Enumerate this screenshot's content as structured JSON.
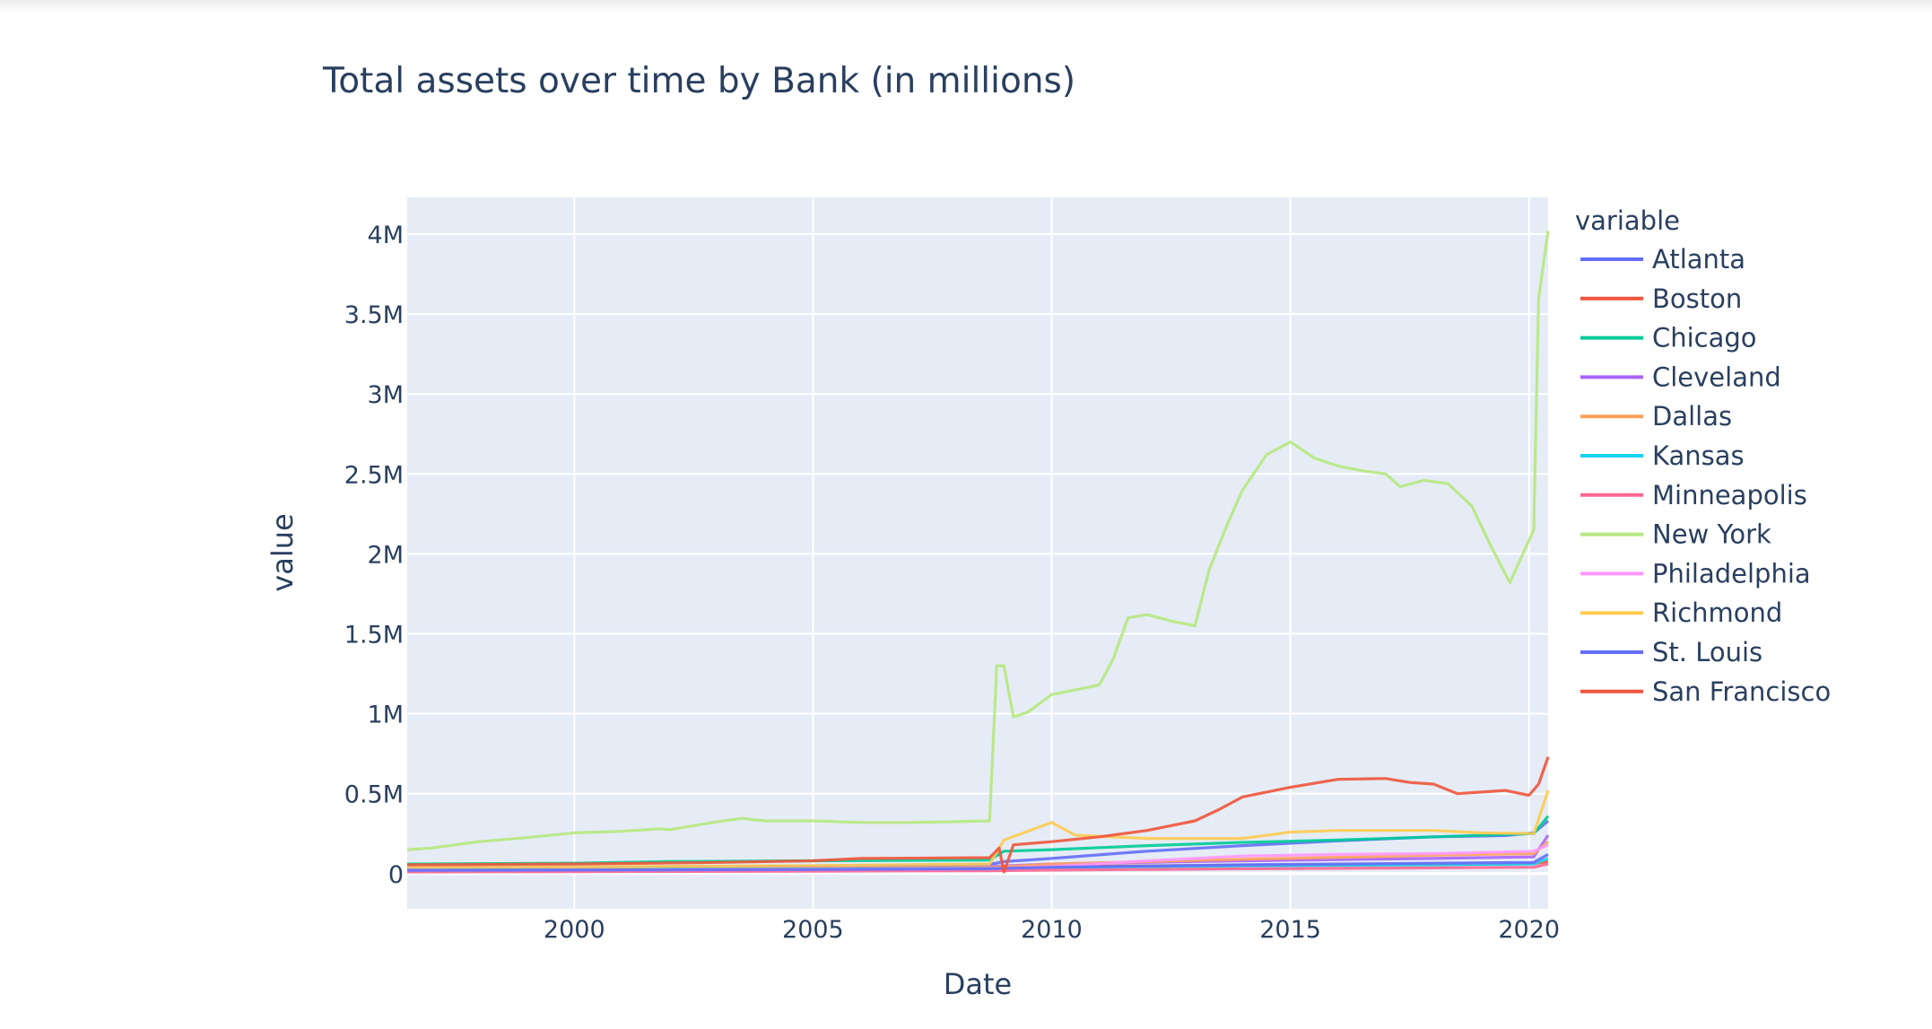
{
  "chart_data": {
    "type": "line",
    "title": "Total assets over time by Bank (in millions)",
    "xlabel": "Date",
    "ylabel": "value",
    "xlim": [
      1996.5,
      2020.4
    ],
    "ylim": [
      -220000,
      4230000
    ],
    "x_ticks": [
      2000,
      2005,
      2010,
      2015,
      2020
    ],
    "x_tick_labels": [
      "2000",
      "2005",
      "2010",
      "2015",
      "2020"
    ],
    "y_ticks": [
      0,
      500000,
      1000000,
      1500000,
      2000000,
      2500000,
      3000000,
      3500000,
      4000000
    ],
    "y_tick_labels": [
      "0",
      "0.5M",
      "1M",
      "1.5M",
      "2M",
      "2.5M",
      "3M",
      "3.5M",
      "4M"
    ],
    "grid": true,
    "plot_background": "#e5ecf6",
    "legend": {
      "title": "variable",
      "position": "right"
    },
    "series": [
      {
        "name": "Atlanta",
        "color": "#636efa",
        "points": [
          [
            1996.5,
            35000
          ],
          [
            2000,
            38000
          ],
          [
            2005,
            48000
          ],
          [
            2008.7,
            58000
          ],
          [
            2009,
            75000
          ],
          [
            2010,
            95000
          ],
          [
            2012,
            140000
          ],
          [
            2014,
            175000
          ],
          [
            2016,
            205000
          ],
          [
            2018,
            230000
          ],
          [
            2019.5,
            238000
          ],
          [
            2020.1,
            255000
          ],
          [
            2020.4,
            330000
          ]
        ]
      },
      {
        "name": "Boston",
        "color": "#EF553B",
        "points": [
          [
            1996.5,
            25000
          ],
          [
            2000,
            28000
          ],
          [
            2005,
            32000
          ],
          [
            2008.7,
            38000
          ],
          [
            2010,
            45000
          ],
          [
            2014,
            52000
          ],
          [
            2018,
            58000
          ],
          [
            2020.1,
            62000
          ],
          [
            2020.4,
            75000
          ]
        ]
      },
      {
        "name": "Chicago",
        "color": "#00cc96",
        "points": [
          [
            1996.5,
            60000
          ],
          [
            2000,
            65000
          ],
          [
            2002,
            75000
          ],
          [
            2005,
            80000
          ],
          [
            2008.7,
            85000
          ],
          [
            2009,
            140000
          ],
          [
            2010,
            150000
          ],
          [
            2012,
            175000
          ],
          [
            2014,
            195000
          ],
          [
            2016,
            210000
          ],
          [
            2018,
            230000
          ],
          [
            2020.1,
            250000
          ],
          [
            2020.4,
            360000
          ]
        ]
      },
      {
        "name": "Cleveland",
        "color": "#ab63fa",
        "points": [
          [
            1996.5,
            30000
          ],
          [
            2000,
            33000
          ],
          [
            2005,
            38000
          ],
          [
            2008.7,
            45000
          ],
          [
            2010,
            60000
          ],
          [
            2014,
            80000
          ],
          [
            2018,
            95000
          ],
          [
            2020.1,
            105000
          ],
          [
            2020.4,
            240000
          ]
        ]
      },
      {
        "name": "Dallas",
        "color": "#FFA15A",
        "points": [
          [
            1996.5,
            20000
          ],
          [
            2000,
            25000
          ],
          [
            2005,
            30000
          ],
          [
            2008.7,
            38000
          ],
          [
            2010,
            60000
          ],
          [
            2014,
            90000
          ],
          [
            2018,
            115000
          ],
          [
            2020.1,
            125000
          ],
          [
            2020.4,
            200000
          ]
        ]
      },
      {
        "name": "Kansas",
        "color": "#19d3f3",
        "points": [
          [
            1996.5,
            22000
          ],
          [
            2000,
            25000
          ],
          [
            2005,
            28000
          ],
          [
            2008.7,
            32000
          ],
          [
            2010,
            38000
          ],
          [
            2014,
            48000
          ],
          [
            2018,
            55000
          ],
          [
            2020.1,
            60000
          ],
          [
            2020.4,
            95000
          ]
        ]
      },
      {
        "name": "Minneapolis",
        "color": "#FF6692",
        "points": [
          [
            1996.5,
            10000
          ],
          [
            2000,
            12000
          ],
          [
            2005,
            15000
          ],
          [
            2008.7,
            18000
          ],
          [
            2010,
            22000
          ],
          [
            2014,
            30000
          ],
          [
            2018,
            36000
          ],
          [
            2020.1,
            40000
          ],
          [
            2020.4,
            60000
          ]
        ]
      },
      {
        "name": "New York",
        "color": "#B6E880",
        "points": [
          [
            1996.5,
            150000
          ],
          [
            1997,
            160000
          ],
          [
            1998,
            200000
          ],
          [
            1999,
            225000
          ],
          [
            2000,
            255000
          ],
          [
            2001,
            265000
          ],
          [
            2001.8,
            280000
          ],
          [
            2002,
            275000
          ],
          [
            2003,
            325000
          ],
          [
            2003.5,
            345000
          ],
          [
            2004,
            330000
          ],
          [
            2005,
            330000
          ],
          [
            2006,
            320000
          ],
          [
            2007,
            320000
          ],
          [
            2008,
            325000
          ],
          [
            2008.7,
            330000
          ],
          [
            2008.85,
            1300000
          ],
          [
            2009,
            1300000
          ],
          [
            2009.2,
            980000
          ],
          [
            2009.5,
            1010000
          ],
          [
            2010,
            1120000
          ],
          [
            2010.5,
            1150000
          ],
          [
            2011,
            1180000
          ],
          [
            2011.3,
            1350000
          ],
          [
            2011.6,
            1600000
          ],
          [
            2012,
            1620000
          ],
          [
            2012.5,
            1580000
          ],
          [
            2013,
            1550000
          ],
          [
            2013.3,
            1900000
          ],
          [
            2013.7,
            2200000
          ],
          [
            2014,
            2400000
          ],
          [
            2014.5,
            2620000
          ],
          [
            2015,
            2700000
          ],
          [
            2015.5,
            2600000
          ],
          [
            2016,
            2550000
          ],
          [
            2016.5,
            2520000
          ],
          [
            2017,
            2500000
          ],
          [
            2017.3,
            2420000
          ],
          [
            2017.8,
            2460000
          ],
          [
            2018.3,
            2440000
          ],
          [
            2018.8,
            2300000
          ],
          [
            2019.2,
            2050000
          ],
          [
            2019.6,
            1820000
          ],
          [
            2019.9,
            2020000
          ],
          [
            2020.1,
            2150000
          ],
          [
            2020.2,
            3600000
          ],
          [
            2020.4,
            4020000
          ]
        ]
      },
      {
        "name": "Philadelphia",
        "color": "#FF97FF",
        "points": [
          [
            1996.5,
            20000
          ],
          [
            2000,
            22000
          ],
          [
            2005,
            25000
          ],
          [
            2008.7,
            30000
          ],
          [
            2010,
            45000
          ],
          [
            2012,
            80000
          ],
          [
            2014,
            110000
          ],
          [
            2016,
            120000
          ],
          [
            2018,
            125000
          ],
          [
            2020.1,
            140000
          ],
          [
            2020.4,
            180000
          ]
        ]
      },
      {
        "name": "Richmond",
        "color": "#FECB52",
        "points": [
          [
            1996.5,
            40000
          ],
          [
            2000,
            42000
          ],
          [
            2005,
            50000
          ],
          [
            2008.7,
            60000
          ],
          [
            2009,
            210000
          ],
          [
            2010,
            320000
          ],
          [
            2010.5,
            240000
          ],
          [
            2012,
            220000
          ],
          [
            2014,
            220000
          ],
          [
            2015,
            260000
          ],
          [
            2016,
            270000
          ],
          [
            2018,
            270000
          ],
          [
            2019,
            255000
          ],
          [
            2020.1,
            250000
          ],
          [
            2020.4,
            520000
          ]
        ]
      },
      {
        "name": "St. Louis",
        "color": "#636efa",
        "points": [
          [
            1996.5,
            20000
          ],
          [
            2000,
            22000
          ],
          [
            2005,
            25000
          ],
          [
            2008.7,
            30000
          ],
          [
            2010,
            40000
          ],
          [
            2014,
            55000
          ],
          [
            2018,
            65000
          ],
          [
            2020.1,
            70000
          ],
          [
            2020.4,
            120000
          ]
        ]
      },
      {
        "name": "San Francisco",
        "color": "#EF553B",
        "points": [
          [
            1996.5,
            55000
          ],
          [
            2000,
            60000
          ],
          [
            2003,
            70000
          ],
          [
            2005,
            80000
          ],
          [
            2006,
            95000
          ],
          [
            2008.7,
            100000
          ],
          [
            2008.9,
            160000
          ],
          [
            2009,
            10000
          ],
          [
            2009.2,
            180000
          ],
          [
            2010,
            200000
          ],
          [
            2011,
            230000
          ],
          [
            2012,
            270000
          ],
          [
            2013,
            330000
          ],
          [
            2013.5,
            400000
          ],
          [
            2014,
            480000
          ],
          [
            2015,
            540000
          ],
          [
            2016,
            590000
          ],
          [
            2017,
            595000
          ],
          [
            2017.5,
            570000
          ],
          [
            2018,
            560000
          ],
          [
            2018.5,
            500000
          ],
          [
            2019,
            510000
          ],
          [
            2019.5,
            520000
          ],
          [
            2020,
            490000
          ],
          [
            2020.2,
            560000
          ],
          [
            2020.4,
            730000
          ]
        ]
      }
    ]
  }
}
